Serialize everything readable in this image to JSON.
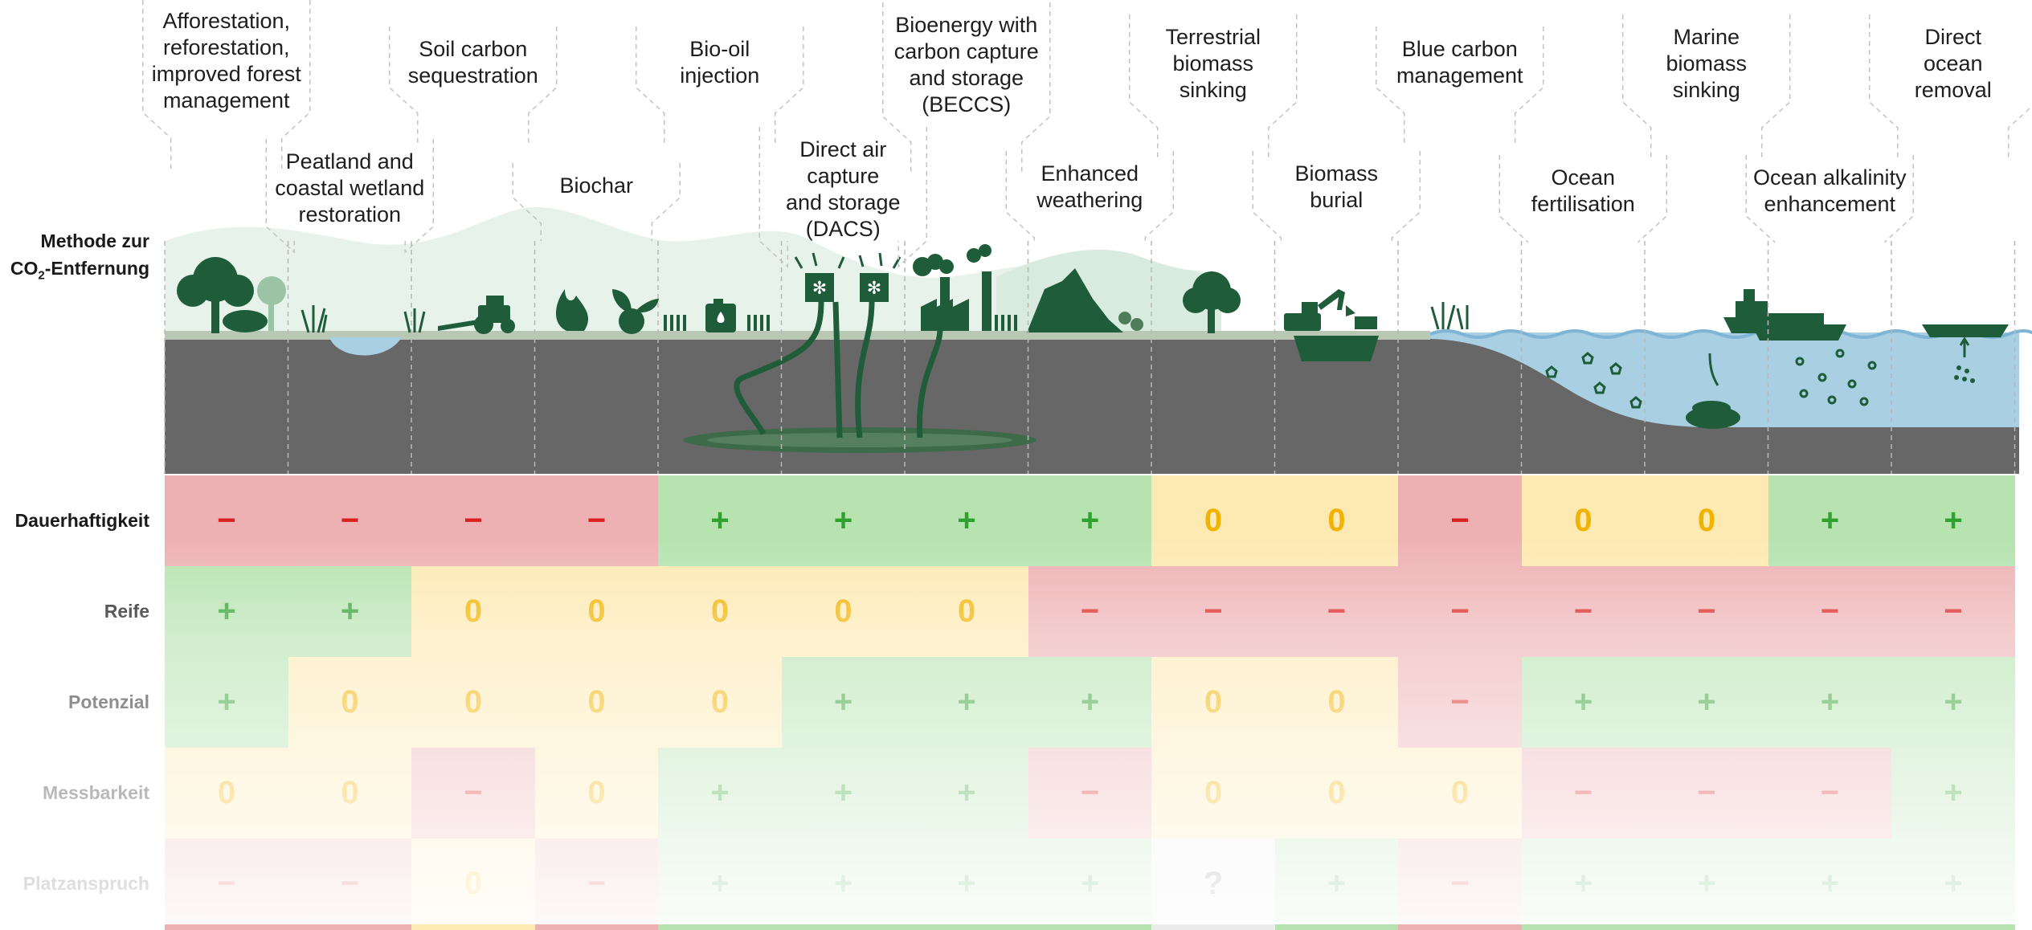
{
  "side_title_line1": "Methode zur",
  "side_title_co2": "CO",
  "side_title_sub": "2",
  "side_title_rest": "-Entfernung",
  "methods": [
    {
      "label": "Afforestation,\nreforestation,\nimproved forest\nmanagement"
    },
    {
      "label": "Peatland and\ncoastal wetland\nrestoration"
    },
    {
      "label": "Soil carbon\nsequestration"
    },
    {
      "label": "Biochar"
    },
    {
      "label": "Bio-oil\ninjection"
    },
    {
      "label": "Direct air\ncapture\nand storage\n(DACS)"
    },
    {
      "label": "Bioenergy with\ncarbon capture\nand storage\n(BECCS)"
    },
    {
      "label": "Enhanced\nweathering"
    },
    {
      "label": "Terrestrial\nbiomass\nsinking"
    },
    {
      "label": "Biomass\nburial"
    },
    {
      "label": "Blue carbon\nmanagement"
    },
    {
      "label": "Ocean\nfertilisation"
    },
    {
      "label": "Marine\nbiomass\nsinking"
    },
    {
      "label": "Ocean alkalinity\nenhancement"
    },
    {
      "label": "Direct\nocean\nremoval"
    }
  ],
  "criteria": [
    {
      "name": "Dauerhaftigkeit",
      "ratings": [
        "−",
        "−",
        "−",
        "−",
        "+",
        "+",
        "+",
        "+",
        "0",
        "0",
        "−",
        "0",
        "0",
        "+",
        "+"
      ]
    },
    {
      "name": "Reife",
      "ratings": [
        "+",
        "+",
        "0",
        "0",
        "0",
        "0",
        "0",
        "−",
        "−",
        "−",
        "−",
        "−",
        "−",
        "−",
        "−"
      ]
    },
    {
      "name": "Potenzial",
      "ratings": [
        "+",
        "0",
        "0",
        "0",
        "0",
        "+",
        "+",
        "+",
        "0",
        "0",
        "−",
        "+",
        "+",
        "+",
        "+"
      ]
    },
    {
      "name": "Messbarkeit",
      "ratings": [
        "0",
        "0",
        "−",
        "0",
        "+",
        "+",
        "+",
        "−",
        "0",
        "0",
        "0",
        "−",
        "−",
        "−",
        "+"
      ]
    },
    {
      "name": "Platzanspruch",
      "ratings": [
        "−",
        "−",
        "0",
        "−",
        "+",
        "+",
        "+",
        "+",
        "?",
        "+",
        "−",
        "+",
        "+",
        "+",
        "+"
      ]
    }
  ],
  "colors": {
    "plus": "#2fa12f",
    "zero": "#f1b200",
    "minus": "#d9201f",
    "plus_bg": "#b6e3b0",
    "zero_bg": "#fde9b2",
    "minus_bg": "#eeb1b3",
    "forest_green": "#1f5c3a",
    "ground_grey": "#676767",
    "water_blue": "#a9cfe3"
  },
  "icons": [
    "tree-icon",
    "wetland-icon",
    "tractor-icon",
    "fire-icon",
    "seedling-icon",
    "bio-oil-tank-icon",
    "dac-fan-icon",
    "factory-icon",
    "rock-icon",
    "excavator-icon",
    "container-ship-icon",
    "trawler-ship-icon",
    "particles-icon",
    "barge-icon"
  ]
}
